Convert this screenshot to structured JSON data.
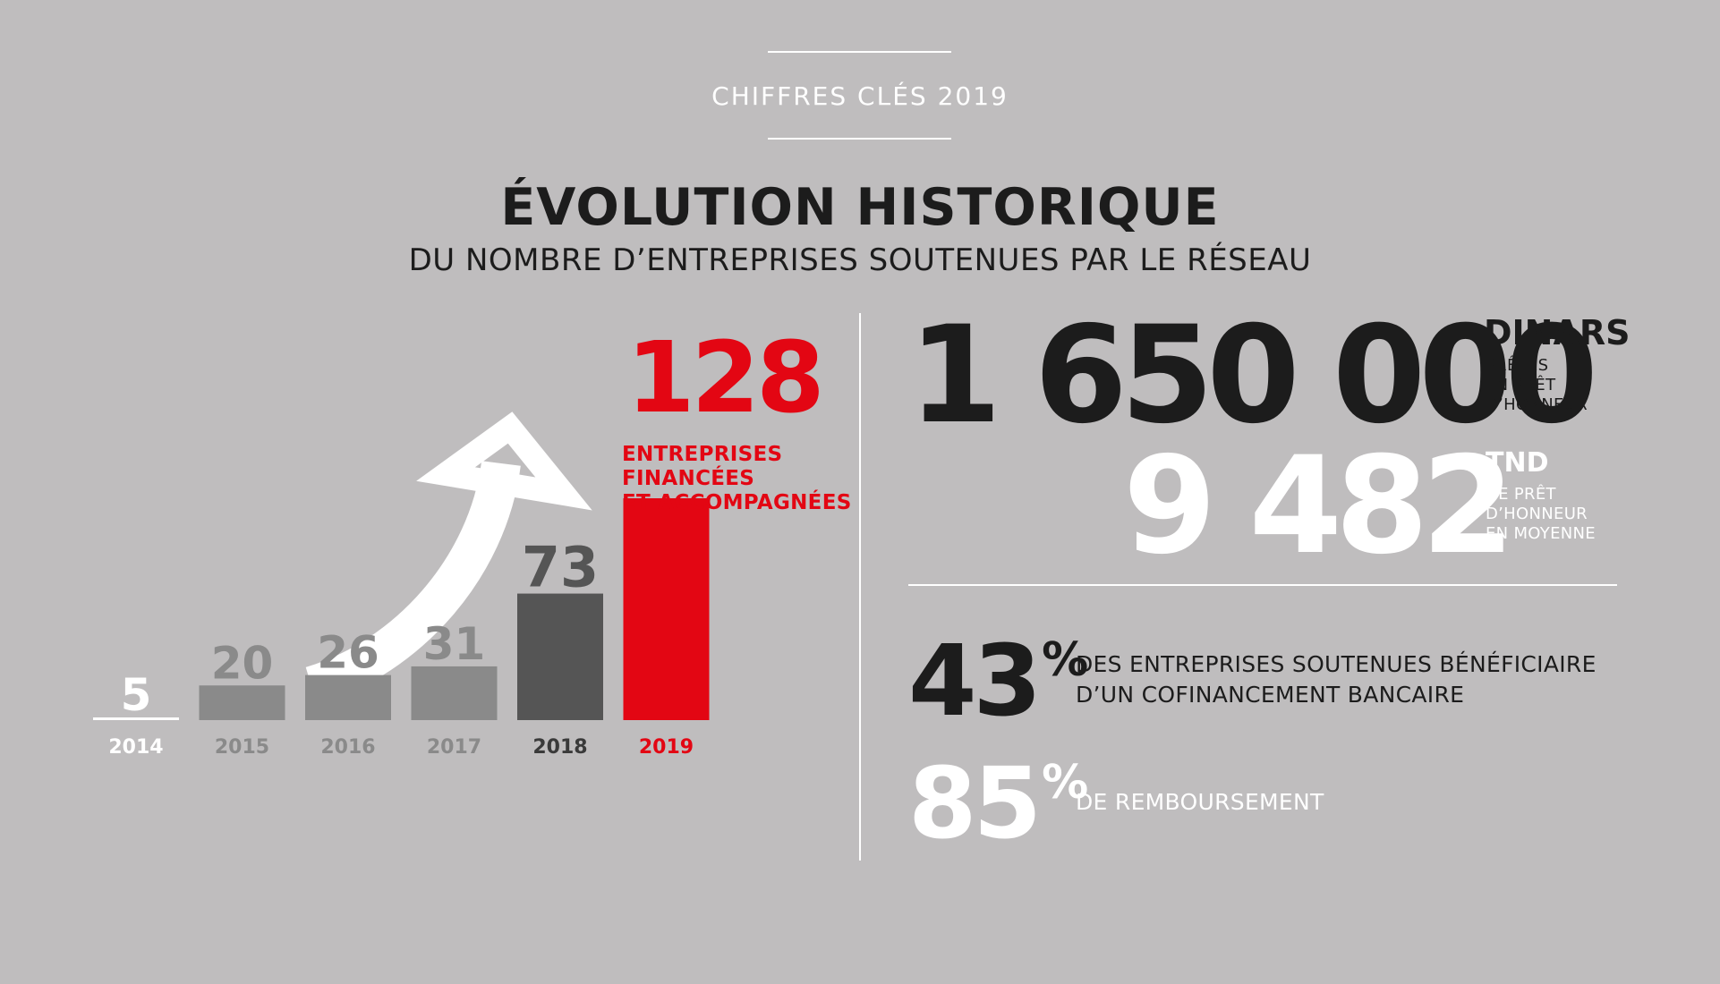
{
  "header": {
    "label": "CHIFFRES CLÉS 2019",
    "title": "ÉVOLUTION HISTORIQUE",
    "subtitle": "DU NOMBRE D’ENTREPRISES SOUTENUES PAR LE RÉSEAU"
  },
  "highlight": {
    "value": "128",
    "label_lines": [
      "ENTREPRISES",
      "FINANCÉES",
      "ET ACCOMPAGNÉES"
    ]
  },
  "chart_data": {
    "type": "bar",
    "title": "",
    "xlabel": "",
    "ylabel": "",
    "categories": [
      "2014",
      "2015",
      "2016",
      "2017",
      "2018",
      "2019"
    ],
    "values": [
      5,
      20,
      26,
      31,
      73,
      128
    ],
    "value_labels": [
      "5",
      "20",
      "26",
      "31",
      "73",
      ""
    ],
    "ylim": [
      0,
      128
    ],
    "grid": false,
    "legend": "none",
    "bar_colors": [
      "#ffffff",
      "#8a8a8a",
      "#8a8a8a",
      "#8a8a8a",
      "#555555",
      "#e30613"
    ],
    "value_label_colors": [
      "#ffffff",
      "#8a8a8a",
      "#8a8a8a",
      "#8a8a8a",
      "#555555",
      "#e30613"
    ],
    "tick_label_colors": [
      "#ffffff",
      "#8a8a8a",
      "#8a8a8a",
      "#8a8a8a",
      "#3a3a3a",
      "#e30613"
    ],
    "annotation": "upward-trend-arrow-icon"
  },
  "stats": {
    "amount": {
      "value": "1 650 000",
      "unit": "DINARS",
      "caption_lines": [
        "PRÊTÉS",
        "EN PRÊT",
        "D’HONNEUR"
      ]
    },
    "average": {
      "value": "9 482",
      "unit": "TND",
      "caption_lines": [
        "DE PRÊT",
        "D’HONNEUR",
        "EN MOYENNE"
      ]
    },
    "cofinancing": {
      "value": "43",
      "sign": "%",
      "caption_lines": [
        "DES ENTREPRISES SOUTENUES BÉNÉFICIAIRE",
        "D’UN COFINANCEMENT BANCAIRE"
      ]
    },
    "repayment": {
      "value": "85",
      "sign": "%",
      "caption_lines": [
        "DE REMBOURSEMENT"
      ]
    }
  },
  "colors": {
    "background": "#bfbdbe",
    "accent": "#e30613",
    "dark_text": "#1c1c1c",
    "light_text": "#ffffff"
  }
}
